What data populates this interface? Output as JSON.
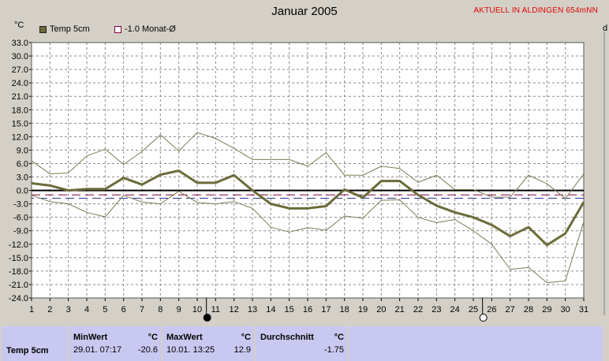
{
  "header": {
    "title": "Januar 2005",
    "station": "AKTUELL IN ALDINGEN 654mNN",
    "unit_left": "°C",
    "unit_right": "d"
  },
  "legend": [
    {
      "label": "Temp 5cm",
      "color": "#6b6b3a",
      "style": "filled"
    },
    {
      "label": "-1.0 Monat-Ø",
      "color": "#800040",
      "style": "outline"
    }
  ],
  "moon_phases": [
    {
      "day": 10.5,
      "phase": "new-moon"
    },
    {
      "day": 25.5,
      "phase": "full-moon"
    }
  ],
  "chart_data": {
    "type": "line",
    "title": "Januar 2005",
    "ylabel": "°C",
    "xlim": [
      1,
      31
    ],
    "ylim": [
      -24,
      33
    ],
    "x_ticks": [
      1,
      2,
      3,
      4,
      5,
      6,
      7,
      8,
      9,
      10,
      11,
      12,
      13,
      14,
      15,
      16,
      17,
      18,
      19,
      20,
      21,
      22,
      23,
      24,
      25,
      26,
      27,
      28,
      29,
      30,
      31
    ],
    "y_ticks": [
      "33.0",
      "30.0",
      "27.0",
      "24.0",
      "21.0",
      "18.0",
      "15.0",
      "12.0",
      "9.0",
      "6.0",
      "3.0",
      "0.0",
      "-3.0",
      "-6.0",
      "-9.0",
      "-12.0",
      "-15.0",
      "-18.0",
      "-21.0",
      "-24.0"
    ],
    "grid": true,
    "zero_line": 0,
    "reference_line": {
      "name": "-1.0 Monat-Ø",
      "value": -1.0
    },
    "second_reference": -1.75,
    "series": [
      {
        "name": "Temp 5cm",
        "role": "mean",
        "values": [
          1.6,
          1.1,
          0,
          0.3,
          0.3,
          2.8,
          1.3,
          3.5,
          4.4,
          1.7,
          1.7,
          3.4,
          0,
          -3,
          -4,
          -4,
          -3.5,
          0.2,
          -1.6,
          2.1,
          2.1,
          -1,
          -3.4,
          -4.9,
          -6,
          -7.7,
          -10.2,
          -8.2,
          -12.2,
          -9.6,
          -2.6
        ]
      },
      {
        "name": "max",
        "role": "max",
        "values": [
          6.6,
          3.7,
          3.9,
          7.7,
          9.2,
          5.8,
          8.7,
          12.4,
          8.8,
          12.9,
          11.6,
          9.4,
          6.9,
          6.9,
          6.9,
          5.4,
          8.4,
          3.4,
          3.4,
          5.4,
          4.9,
          1.8,
          3.4,
          0.2,
          0.2,
          -1.5,
          -1.5,
          3.4,
          1.5,
          -1.8,
          3.7
        ]
      },
      {
        "name": "min",
        "role": "min",
        "values": [
          -1.1,
          -2.5,
          -3,
          -4.9,
          -5.9,
          -1.1,
          -2.6,
          -3,
          -0.2,
          -2.7,
          -3,
          -2.5,
          -4,
          -8.2,
          -9.3,
          -8.3,
          -8.9,
          -5.7,
          -6.2,
          -2.2,
          -2.1,
          -6,
          -7.2,
          -6.5,
          -9,
          -12,
          -17.6,
          -17.2,
          -20.6,
          -20.2,
          -7
        ]
      }
    ]
  },
  "stats": {
    "row_label": "Temp 5cm",
    "min": {
      "label": "MinWert",
      "unit": "°C",
      "datetime": "29.01.  07:17",
      "value": "-20.6"
    },
    "max": {
      "label": "MaxWert",
      "unit": "°C",
      "datetime": "10.01.  13:25",
      "value": "12.9"
    },
    "avg": {
      "label": "Durchschnitt",
      "unit": "°C",
      "value": "-1.75"
    }
  }
}
